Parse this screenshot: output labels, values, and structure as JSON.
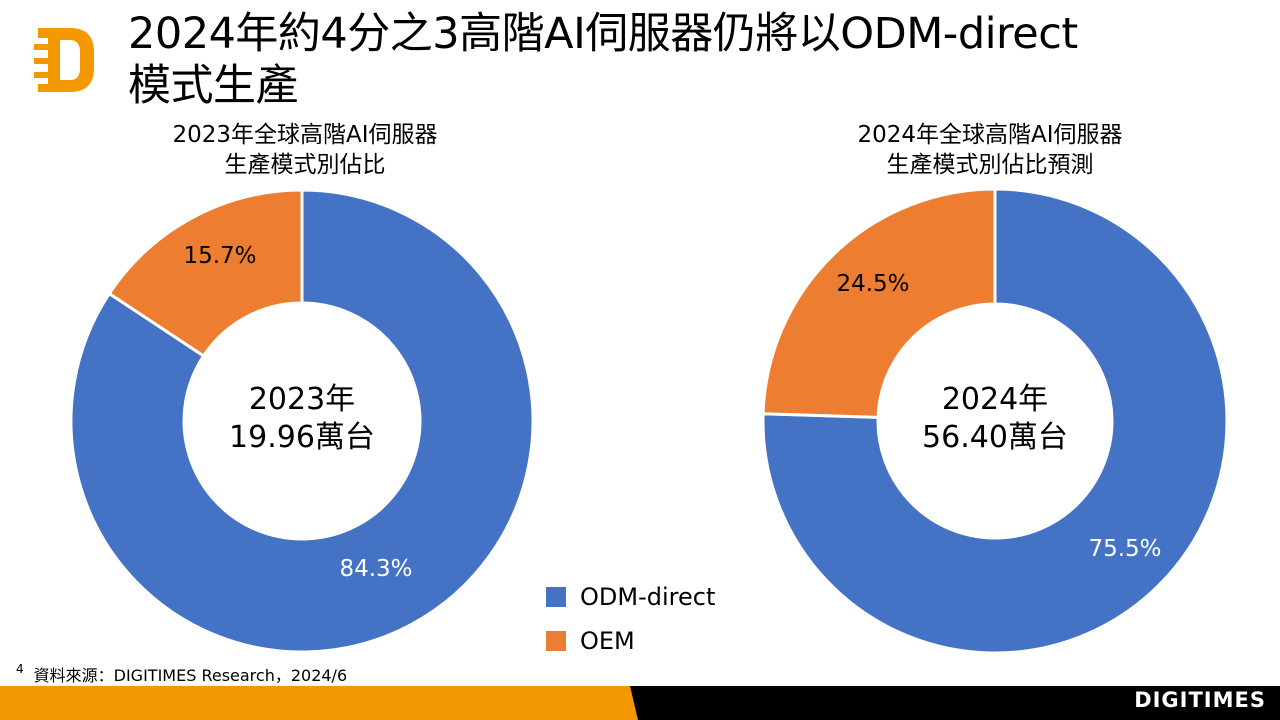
{
  "header": {
    "title_line1": "2024年約4分之3高階AI伺服器仍將以ODM-direct",
    "title_line2": "模式生產",
    "logo": "digitimes-d-logo"
  },
  "colors": {
    "odm_direct": "#4472C4",
    "oem": "#ED7D31",
    "brand_orange": "#F39800",
    "footer_black": "#000000"
  },
  "legend": [
    {
      "label": "ODM-direct",
      "color": "#4472C4"
    },
    {
      "label": "OEM",
      "color": "#ED7D31"
    }
  ],
  "chart_data": [
    {
      "type": "pie",
      "title": "2023年全球高階AI伺服器",
      "subtitle": "生產模式別佔比",
      "center_label_line1": "2023年",
      "center_label_line2": "19.96萬台",
      "categories": [
        "ODM-direct",
        "OEM"
      ],
      "values": [
        84.3,
        15.7
      ],
      "data_labels": [
        "84.3%",
        "15.7%"
      ]
    },
    {
      "type": "pie",
      "title": "2024年全球高階AI伺服器",
      "subtitle": "生產模式別佔比預測",
      "center_label_line1": "2024年",
      "center_label_line2": "56.40萬台",
      "categories": [
        "ODM-direct",
        "OEM"
      ],
      "values": [
        75.5,
        24.5
      ],
      "data_labels": [
        "75.5%",
        "24.5%"
      ]
    }
  ],
  "footer": {
    "page_number": "4",
    "source": "資料來源：DIGITIMES Research，2024/6",
    "brand": "DIGITIMES"
  }
}
